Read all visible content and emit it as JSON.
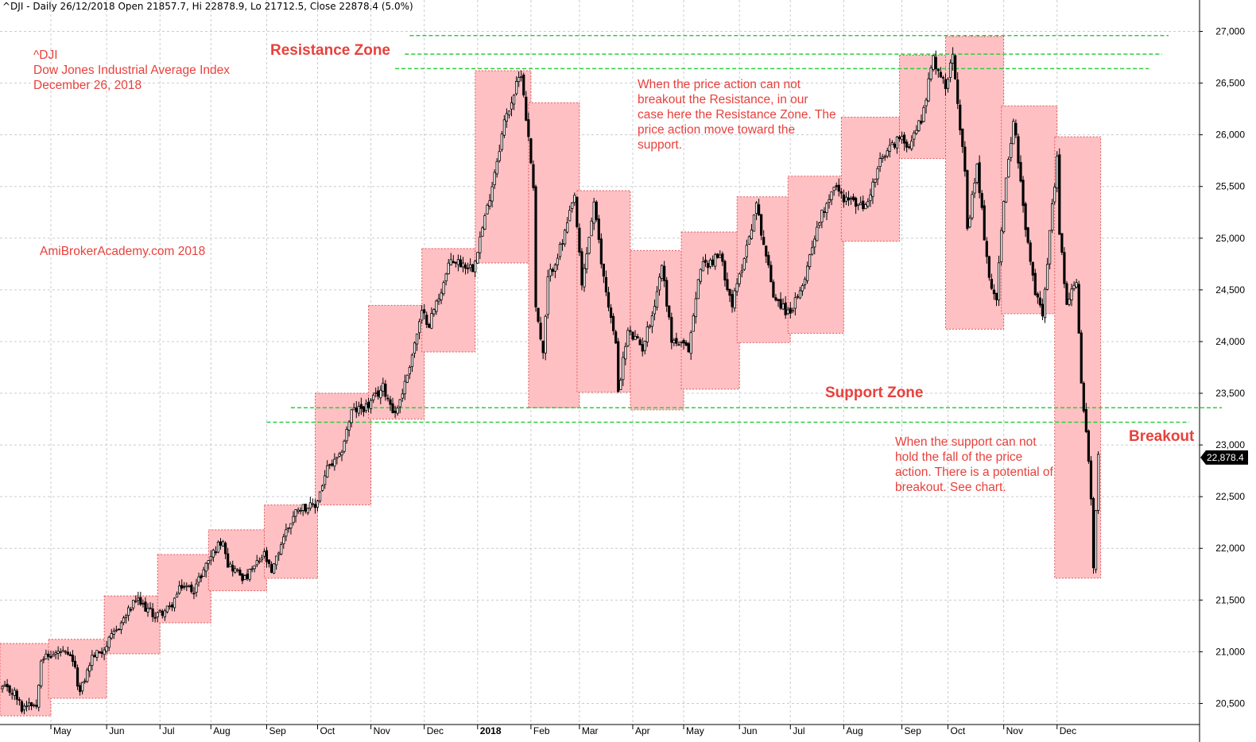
{
  "header": {
    "title_line": "^DJI - Daily 26/12/2018 Open 21857.7, Hi 22878.9, Lo 21712.5, Close 22878.4 (5.0%)"
  },
  "info": {
    "symbol": "^DJI",
    "name": "Dow Jones Industrial Average Index",
    "date": "December 26, 2018",
    "watermark": "AmiBrokerAcademy.com  2018"
  },
  "annotations": {
    "resistance_label": "Resistance Zone",
    "support_label": "Support Zone",
    "breakout_label": "Breakout",
    "resistance_note": [
      "When the price action can not",
      "breakout the Resistance, in our",
      "case here the Resistance Zone. The",
      "price action move toward the",
      "support."
    ],
    "support_note": [
      "When the support can not",
      "hold the fall of the price",
      "action. There is a potential of",
      "breakout. See chart."
    ]
  },
  "colors": {
    "box_fill": "#ffc0c3",
    "box_border": "#e05a5a",
    "zone_line": "#2ecc40",
    "label_red": "#e8413c",
    "candle": "#000000"
  },
  "chart_data": {
    "type": "candlestick",
    "ylim": [
      20250,
      27150
    ],
    "y_ticks": [
      20500,
      21000,
      21500,
      22000,
      22500,
      23000,
      23500,
      24000,
      24500,
      25000,
      25500,
      26000,
      26500,
      27000
    ],
    "y_tick_labels": [
      "20,500",
      "21,000",
      "21,500",
      "22,000",
      "22,500",
      "23,000",
      "23,500",
      "24,000",
      "24,500",
      "25,000",
      "25,500",
      "26,000",
      "26,500",
      "27,000"
    ],
    "last_close": 22878.4,
    "last_close_label": "22,878.4",
    "month_labels": [
      {
        "label": "May",
        "date": "2017-05-01"
      },
      {
        "label": "Jun",
        "date": "2017-06-01"
      },
      {
        "label": "Jul",
        "date": "2017-07-01"
      },
      {
        "label": "Aug",
        "date": "2017-08-01"
      },
      {
        "label": "Sep",
        "date": "2017-09-01"
      },
      {
        "label": "Oct",
        "date": "2017-10-01"
      },
      {
        "label": "Nov",
        "date": "2017-11-01"
      },
      {
        "label": "Dec",
        "date": "2017-12-01"
      },
      {
        "label": "2018",
        "date": "2018-01-02",
        "bold": true
      },
      {
        "label": "Feb",
        "date": "2018-02-01"
      },
      {
        "label": "Mar",
        "date": "2018-03-01"
      },
      {
        "label": "Apr",
        "date": "2018-04-02"
      },
      {
        "label": "May",
        "date": "2018-05-01"
      },
      {
        "label": "Jun",
        "date": "2018-06-01"
      },
      {
        "label": "Jul",
        "date": "2018-07-02"
      },
      {
        "label": "Aug",
        "date": "2018-08-01"
      },
      {
        "label": "Sep",
        "date": "2018-09-04"
      },
      {
        "label": "Oct",
        "date": "2018-10-01"
      },
      {
        "label": "Nov",
        "date": "2018-11-01"
      },
      {
        "label": "Dec",
        "date": "2018-12-03"
      }
    ],
    "monthly_range_boxes": [
      {
        "start": "2017-04-03",
        "end": "2017-04-28",
        "high": 21080,
        "low": 20380
      },
      {
        "start": "2017-05-01",
        "end": "2017-05-31",
        "high": 21120,
        "low": 20550
      },
      {
        "start": "2017-06-01",
        "end": "2017-06-30",
        "high": 21540,
        "low": 20980
      },
      {
        "start": "2017-07-03",
        "end": "2017-07-31",
        "high": 21940,
        "low": 21280
      },
      {
        "start": "2017-08-01",
        "end": "2017-08-31",
        "high": 22180,
        "low": 21590
      },
      {
        "start": "2017-09-01",
        "end": "2017-09-29",
        "high": 22420,
        "low": 21710
      },
      {
        "start": "2017-10-02",
        "end": "2017-10-31",
        "high": 23500,
        "low": 22420
      },
      {
        "start": "2017-11-01",
        "end": "2017-11-30",
        "high": 24350,
        "low": 23250
      },
      {
        "start": "2017-12-01",
        "end": "2017-12-29",
        "high": 24900,
        "low": 23900
      },
      {
        "start": "2018-01-02",
        "end": "2018-01-31",
        "high": 26620,
        "low": 24760
      },
      {
        "start": "2018-02-01",
        "end": "2018-02-28",
        "high": 26310,
        "low": 23360
      },
      {
        "start": "2018-03-01",
        "end": "2018-03-29",
        "high": 25460,
        "low": 23510
      },
      {
        "start": "2018-04-02",
        "end": "2018-04-30",
        "high": 24880,
        "low": 23340
      },
      {
        "start": "2018-05-01",
        "end": "2018-05-31",
        "high": 25060,
        "low": 23540
      },
      {
        "start": "2018-06-01",
        "end": "2018-06-29",
        "high": 25400,
        "low": 23990
      },
      {
        "start": "2018-07-02",
        "end": "2018-07-31",
        "high": 25600,
        "low": 24080
      },
      {
        "start": "2018-08-01",
        "end": "2018-08-31",
        "high": 26170,
        "low": 24970
      },
      {
        "start": "2018-09-04",
        "end": "2018-09-28",
        "high": 26770,
        "low": 25770
      },
      {
        "start": "2018-10-01",
        "end": "2018-10-31",
        "high": 26950,
        "low": 24120
      },
      {
        "start": "2018-11-01",
        "end": "2018-11-30",
        "high": 26280,
        "low": 24270
      },
      {
        "start": "2018-12-03",
        "end": "2018-12-26",
        "high": 25980,
        "low": 21712
      }
    ],
    "resistance_levels": [
      {
        "value": 26960,
        "start": "2017-11-23"
      },
      {
        "value": 26780,
        "start": "2017-11-21"
      },
      {
        "value": 26640,
        "start": "2017-11-15"
      }
    ],
    "support_levels": [
      {
        "value": 23360,
        "start": "2017-09-15"
      },
      {
        "value": 23220,
        "start": "2017-09-01"
      }
    ],
    "price_anchors": [
      [
        "2017-04-03",
        20650
      ],
      [
        "2017-04-10",
        20600
      ],
      [
        "2017-04-13",
        20450
      ],
      [
        "2017-04-18",
        20520
      ],
      [
        "2017-04-21",
        20480
      ],
      [
        "2017-04-25",
        20950
      ],
      [
        "2017-04-28",
        20950
      ],
      [
        "2017-05-05",
        21000
      ],
      [
        "2017-05-12",
        20920
      ],
      [
        "2017-05-17",
        20600
      ],
      [
        "2017-05-24",
        20950
      ],
      [
        "2017-05-31",
        21030
      ],
      [
        "2017-06-09",
        21280
      ],
      [
        "2017-06-19",
        21500
      ],
      [
        "2017-06-29",
        21350
      ],
      [
        "2017-07-07",
        21420
      ],
      [
        "2017-07-14",
        21640
      ],
      [
        "2017-07-21",
        21600
      ],
      [
        "2017-07-31",
        21890
      ],
      [
        "2017-08-08",
        22100
      ],
      [
        "2017-08-10",
        21850
      ],
      [
        "2017-08-17",
        21750
      ],
      [
        "2017-08-21",
        21700
      ],
      [
        "2017-08-31",
        21940
      ],
      [
        "2017-09-05",
        21750
      ],
      [
        "2017-09-12",
        22120
      ],
      [
        "2017-09-20",
        22400
      ],
      [
        "2017-09-29",
        22400
      ],
      [
        "2017-10-06",
        22770
      ],
      [
        "2017-10-13",
        22870
      ],
      [
        "2017-10-20",
        23320
      ],
      [
        "2017-10-31",
        23380
      ],
      [
        "2017-11-08",
        23560
      ],
      [
        "2017-11-15",
        23300
      ],
      [
        "2017-11-21",
        23590
      ],
      [
        "2017-11-30",
        24270
      ],
      [
        "2017-12-05",
        24180
      ],
      [
        "2017-12-12",
        24500
      ],
      [
        "2017-12-18",
        24790
      ],
      [
        "2017-12-29",
        24720
      ],
      [
        "2018-01-08",
        25290
      ],
      [
        "2018-01-17",
        26120
      ],
      [
        "2018-01-26",
        26610
      ],
      [
        "2018-02-02",
        25520
      ],
      [
        "2018-02-05",
        24350
      ],
      [
        "2018-02-08",
        23860
      ],
      [
        "2018-02-12",
        24600
      ],
      [
        "2018-02-20",
        24960
      ],
      [
        "2018-02-27",
        25400
      ],
      [
        "2018-03-02",
        24530
      ],
      [
        "2018-03-09",
        25340
      ],
      [
        "2018-03-14",
        24760
      ],
      [
        "2018-03-22",
        23960
      ],
      [
        "2018-03-23",
        23530
      ],
      [
        "2018-03-29",
        24100
      ],
      [
        "2018-04-06",
        23940
      ],
      [
        "2018-04-13",
        24360
      ],
      [
        "2018-04-18",
        24750
      ],
      [
        "2018-04-24",
        24020
      ],
      [
        "2018-05-03",
        23920
      ],
      [
        "2018-05-10",
        24740
      ],
      [
        "2018-05-16",
        24770
      ],
      [
        "2018-05-22",
        24830
      ],
      [
        "2018-05-29",
        24360
      ],
      [
        "2018-06-01",
        24630
      ],
      [
        "2018-06-12",
        25320
      ],
      [
        "2018-06-21",
        24460
      ],
      [
        "2018-06-29",
        24270
      ],
      [
        "2018-07-06",
        24450
      ],
      [
        "2018-07-17",
        25120
      ],
      [
        "2018-07-26",
        25520
      ],
      [
        "2018-07-31",
        25410
      ],
      [
        "2018-08-10",
        25310
      ],
      [
        "2018-08-14",
        25300
      ],
      [
        "2018-08-22",
        25730
      ],
      [
        "2018-08-31",
        25960
      ],
      [
        "2018-09-07",
        25920
      ],
      [
        "2018-09-14",
        26150
      ],
      [
        "2018-09-21",
        26740
      ],
      [
        "2018-09-28",
        26460
      ],
      [
        "2018-10-03",
        26830
      ],
      [
        "2018-10-10",
        25600
      ],
      [
        "2018-10-11",
        25050
      ],
      [
        "2018-10-17",
        25700
      ],
      [
        "2018-10-24",
        24580
      ],
      [
        "2018-10-29",
        24440
      ],
      [
        "2018-10-31",
        25110
      ],
      [
        "2018-11-07",
        26180
      ],
      [
        "2018-11-14",
        25080
      ],
      [
        "2018-11-20",
        24470
      ],
      [
        "2018-11-23",
        24290
      ],
      [
        "2018-11-30",
        25540
      ],
      [
        "2018-12-03",
        25830
      ],
      [
        "2018-12-04",
        25030
      ],
      [
        "2018-12-07",
        24390
      ],
      [
        "2018-12-13",
        24600
      ],
      [
        "2018-12-17",
        23590
      ],
      [
        "2018-12-20",
        22860
      ],
      [
        "2018-12-21",
        22440
      ],
      [
        "2018-12-24",
        21790
      ],
      [
        "2018-12-26",
        22878
      ]
    ]
  }
}
